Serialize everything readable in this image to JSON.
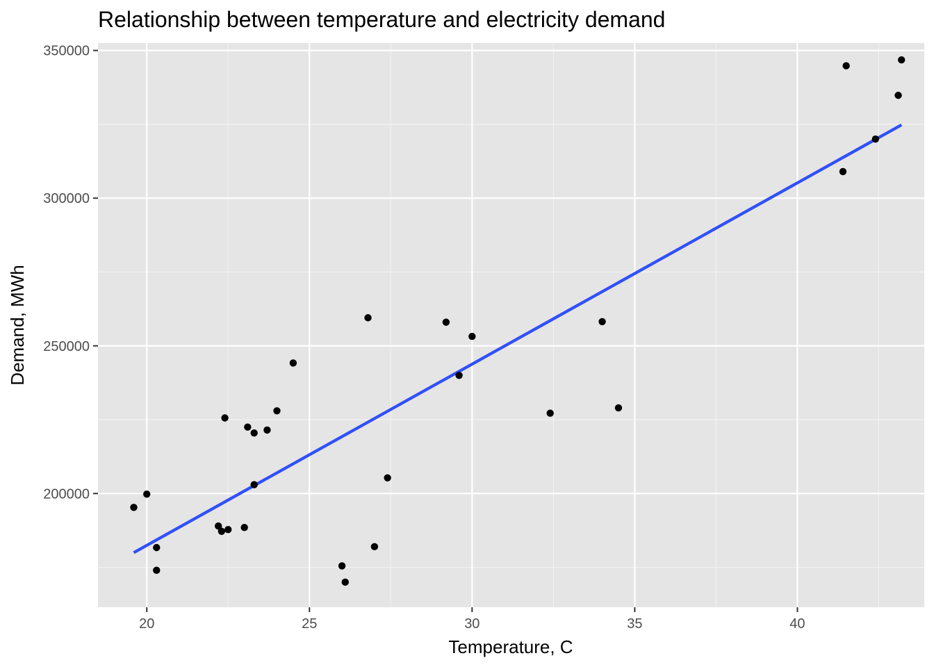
{
  "chart_data": {
    "type": "scatter",
    "title": "Relationship between temperature and electricity demand",
    "xlabel": "Temperature, C",
    "ylabel": "Demand, MWh",
    "xlim": [
      18.5,
      43.9
    ],
    "ylim": [
      161500,
      352500
    ],
    "x_ticks": [
      20,
      25,
      30,
      35,
      40
    ],
    "x_tick_labels": [
      "20",
      "25",
      "30",
      "35",
      "40"
    ],
    "y_ticks": [
      200000,
      250000,
      300000,
      350000
    ],
    "y_tick_labels": [
      "200000",
      "250000",
      "300000",
      "350000"
    ],
    "grid": true,
    "background_color": "#e5e5e5",
    "point_color": "#000000",
    "line_color": "#3050f8",
    "points": [
      {
        "x": 19.6,
        "y": 195300
      },
      {
        "x": 20.0,
        "y": 199800
      },
      {
        "x": 20.3,
        "y": 181700
      },
      {
        "x": 20.3,
        "y": 174000
      },
      {
        "x": 22.2,
        "y": 189000
      },
      {
        "x": 22.3,
        "y": 187200
      },
      {
        "x": 22.4,
        "y": 225600
      },
      {
        "x": 22.5,
        "y": 187800
      },
      {
        "x": 23.0,
        "y": 188500
      },
      {
        "x": 23.1,
        "y": 222500
      },
      {
        "x": 23.3,
        "y": 220500
      },
      {
        "x": 23.3,
        "y": 203000
      },
      {
        "x": 23.7,
        "y": 221500
      },
      {
        "x": 24.0,
        "y": 228000
      },
      {
        "x": 24.5,
        "y": 244200
      },
      {
        "x": 26.0,
        "y": 175500
      },
      {
        "x": 26.1,
        "y": 170000
      },
      {
        "x": 26.8,
        "y": 259500
      },
      {
        "x": 27.0,
        "y": 182000
      },
      {
        "x": 27.4,
        "y": 205300
      },
      {
        "x": 29.2,
        "y": 258000
      },
      {
        "x": 29.6,
        "y": 240000
      },
      {
        "x": 30.0,
        "y": 253200
      },
      {
        "x": 32.4,
        "y": 227200
      },
      {
        "x": 34.0,
        "y": 258200
      },
      {
        "x": 34.5,
        "y": 229000
      },
      {
        "x": 41.4,
        "y": 309000
      },
      {
        "x": 41.5,
        "y": 344800
      },
      {
        "x": 42.4,
        "y": 320000
      },
      {
        "x": 43.1,
        "y": 334800
      },
      {
        "x": 43.2,
        "y": 346800
      }
    ],
    "fit_line": {
      "x": [
        19.6,
        43.2
      ],
      "y": [
        180000,
        324800
      ]
    }
  }
}
